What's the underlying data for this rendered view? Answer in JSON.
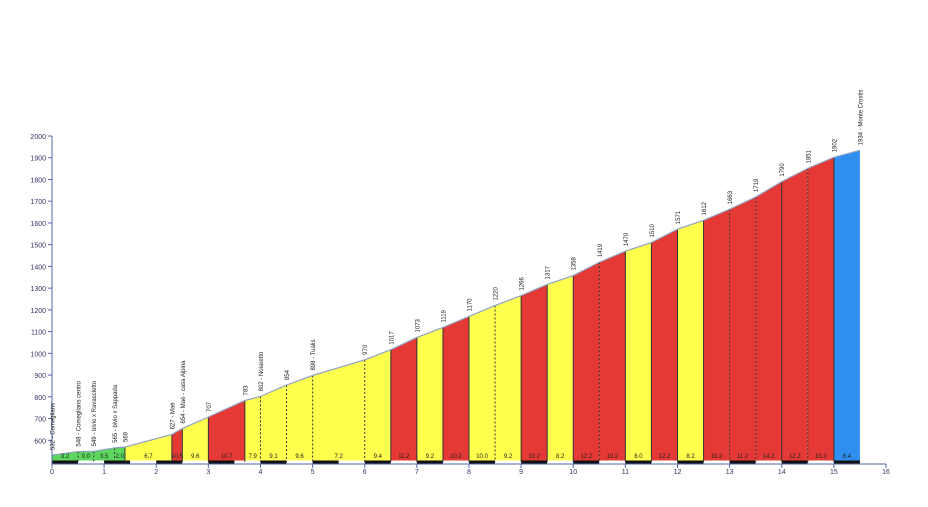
{
  "chart_data": {
    "type": "area",
    "title": "",
    "xlabel": "",
    "ylabel": "",
    "xlim": [
      0,
      16
    ],
    "ylim": [
      500,
      2000
    ],
    "yticks": [
      600,
      700,
      800,
      900,
      1000,
      1100,
      1200,
      1300,
      1400,
      1500,
      1600,
      1700,
      1800,
      1900,
      2000
    ],
    "xticks": [
      0,
      1,
      2,
      3,
      4,
      5,
      6,
      7,
      8,
      9,
      10,
      11,
      12,
      13,
      14,
      15,
      16
    ],
    "colors": {
      "green": "#5cd65c",
      "yellow": "#ffff4d",
      "red": "#e53935",
      "blue": "#2f8ff0",
      "line": "#8fa3c8",
      "axis": "#5566aa"
    },
    "profile": [
      {
        "x": 0.0,
        "y": 532
      },
      {
        "x": 0.5,
        "y": 548
      },
      {
        "x": 0.8,
        "y": 549
      },
      {
        "x": 1.2,
        "y": 565
      },
      {
        "x": 1.4,
        "y": 569
      },
      {
        "x": 2.3,
        "y": 627
      },
      {
        "x": 2.5,
        "y": 654
      },
      {
        "x": 3.0,
        "y": 707
      },
      {
        "x": 3.7,
        "y": 783
      },
      {
        "x": 4.0,
        "y": 802
      },
      {
        "x": 4.5,
        "y": 854
      },
      {
        "x": 5.0,
        "y": 898
      },
      {
        "x": 6.0,
        "y": 970
      },
      {
        "x": 6.5,
        "y": 1017
      },
      {
        "x": 7.0,
        "y": 1073
      },
      {
        "x": 7.5,
        "y": 1119
      },
      {
        "x": 8.0,
        "y": 1170
      },
      {
        "x": 8.5,
        "y": 1220
      },
      {
        "x": 9.0,
        "y": 1266
      },
      {
        "x": 9.5,
        "y": 1317
      },
      {
        "x": 10.0,
        "y": 1358
      },
      {
        "x": 10.5,
        "y": 1419
      },
      {
        "x": 11.0,
        "y": 1470
      },
      {
        "x": 11.5,
        "y": 1510
      },
      {
        "x": 12.0,
        "y": 1571
      },
      {
        "x": 12.5,
        "y": 1612
      },
      {
        "x": 13.0,
        "y": 1663
      },
      {
        "x": 13.5,
        "y": 1719
      },
      {
        "x": 14.0,
        "y": 1790
      },
      {
        "x": 14.5,
        "y": 1851
      },
      {
        "x": 15.0,
        "y": 1902
      },
      {
        "x": 15.5,
        "y": 1934
      }
    ],
    "segments": [
      {
        "from": 0.0,
        "to": 0.5,
        "grade": "3.2",
        "color": "green"
      },
      {
        "from": 0.5,
        "to": 0.8,
        "grade": "0.0",
        "color": "green"
      },
      {
        "from": 0.8,
        "to": 1.2,
        "grade": "3.5",
        "color": "green"
      },
      {
        "from": 1.2,
        "to": 1.4,
        "grade": "2.0",
        "color": "green"
      },
      {
        "from": 1.4,
        "to": 2.3,
        "grade": "6.7",
        "color": "yellow"
      },
      {
        "from": 2.3,
        "to": 2.5,
        "grade": "10.5",
        "color": "red"
      },
      {
        "from": 2.5,
        "to": 3.0,
        "grade": "9.6",
        "color": "yellow"
      },
      {
        "from": 3.0,
        "to": 3.7,
        "grade": "10.7",
        "color": "red"
      },
      {
        "from": 3.7,
        "to": 4.0,
        "grade": "7.9",
        "color": "yellow"
      },
      {
        "from": 4.0,
        "to": 4.5,
        "grade": "9.1",
        "color": "yellow"
      },
      {
        "from": 4.5,
        "to": 5.0,
        "grade": "9.6",
        "color": "yellow"
      },
      {
        "from": 5.0,
        "to": 6.0,
        "grade": "7.2",
        "color": "yellow"
      },
      {
        "from": 6.0,
        "to": 6.5,
        "grade": "9.4",
        "color": "yellow"
      },
      {
        "from": 6.5,
        "to": 7.0,
        "grade": "11.2",
        "color": "red"
      },
      {
        "from": 7.0,
        "to": 7.5,
        "grade": "9.2",
        "color": "yellow"
      },
      {
        "from": 7.5,
        "to": 8.0,
        "grade": "10.2",
        "color": "red"
      },
      {
        "from": 8.0,
        "to": 8.5,
        "grade": "10.0",
        "color": "yellow"
      },
      {
        "from": 8.5,
        "to": 9.0,
        "grade": "9.2",
        "color": "yellow"
      },
      {
        "from": 9.0,
        "to": 9.5,
        "grade": "10.2",
        "color": "red"
      },
      {
        "from": 9.5,
        "to": 10.0,
        "grade": "8.2",
        "color": "yellow"
      },
      {
        "from": 10.0,
        "to": 10.5,
        "grade": "12.2",
        "color": "red"
      },
      {
        "from": 10.5,
        "to": 11.0,
        "grade": "10.2",
        "color": "red"
      },
      {
        "from": 11.0,
        "to": 11.5,
        "grade": "8.0",
        "color": "yellow"
      },
      {
        "from": 11.5,
        "to": 12.0,
        "grade": "12.2",
        "color": "red"
      },
      {
        "from": 12.0,
        "to": 12.5,
        "grade": "8.2",
        "color": "yellow"
      },
      {
        "from": 12.5,
        "to": 13.0,
        "grade": "10.2",
        "color": "red"
      },
      {
        "from": 13.0,
        "to": 13.5,
        "grade": "11.2",
        "color": "red"
      },
      {
        "from": 13.5,
        "to": 14.0,
        "grade": "14.2",
        "color": "red"
      },
      {
        "from": 14.0,
        "to": 14.5,
        "grade": "12.2",
        "color": "red"
      },
      {
        "from": 14.5,
        "to": 15.0,
        "grade": "10.2",
        "color": "red"
      },
      {
        "from": 15.0,
        "to": 15.5,
        "grade": "6.4",
        "color": "blue"
      }
    ],
    "point_labels": [
      {
        "x": 0.0,
        "text": "532 - Comeglians",
        "dashed": false
      },
      {
        "x": 0.5,
        "text": "548 - Comeglians centro",
        "dashed": true
      },
      {
        "x": 0.8,
        "text": "549 - bivio x Ravascletto",
        "dashed": true
      },
      {
        "x": 1.2,
        "text": "565 - bivio x Sappada",
        "dashed": true
      },
      {
        "x": 1.4,
        "text": "569",
        "dashed": false
      },
      {
        "x": 2.3,
        "text": "627 - Maè",
        "dashed": false
      },
      {
        "x": 2.5,
        "text": "654 - Maè - casa Alpina",
        "dashed": false
      },
      {
        "x": 3.0,
        "text": "707",
        "dashed": false
      },
      {
        "x": 3.7,
        "text": "783",
        "dashed": false
      },
      {
        "x": 4.0,
        "text": "802 - Noiaretto",
        "dashed": true
      },
      {
        "x": 4.5,
        "text": "854",
        "dashed": true
      },
      {
        "x": 5.0,
        "text": "898 - Tualis",
        "dashed": true
      },
      {
        "x": 6.0,
        "text": "970",
        "dashed": true
      },
      {
        "x": 6.5,
        "text": "1017",
        "dashed": false
      },
      {
        "x": 7.0,
        "text": "1073",
        "dashed": false
      },
      {
        "x": 7.5,
        "text": "1119",
        "dashed": false
      },
      {
        "x": 8.0,
        "text": "1170",
        "dashed": false
      },
      {
        "x": 8.5,
        "text": "1220",
        "dashed": true
      },
      {
        "x": 9.0,
        "text": "1266",
        "dashed": false
      },
      {
        "x": 9.5,
        "text": "1317",
        "dashed": false
      },
      {
        "x": 10.0,
        "text": "1358",
        "dashed": false
      },
      {
        "x": 10.5,
        "text": "1419",
        "dashed": true
      },
      {
        "x": 11.0,
        "text": "1470",
        "dashed": false
      },
      {
        "x": 11.5,
        "text": "1510",
        "dashed": false
      },
      {
        "x": 12.0,
        "text": "1571",
        "dashed": false
      },
      {
        "x": 12.5,
        "text": "1612",
        "dashed": false
      },
      {
        "x": 13.0,
        "text": "1663",
        "dashed": true
      },
      {
        "x": 13.5,
        "text": "1719",
        "dashed": true
      },
      {
        "x": 14.0,
        "text": "1790",
        "dashed": false
      },
      {
        "x": 14.5,
        "text": "1851",
        "dashed": true
      },
      {
        "x": 15.0,
        "text": "1902",
        "dashed": false
      },
      {
        "x": 15.5,
        "text": "1934 - Monte Crostis",
        "dashed": false
      }
    ]
  }
}
